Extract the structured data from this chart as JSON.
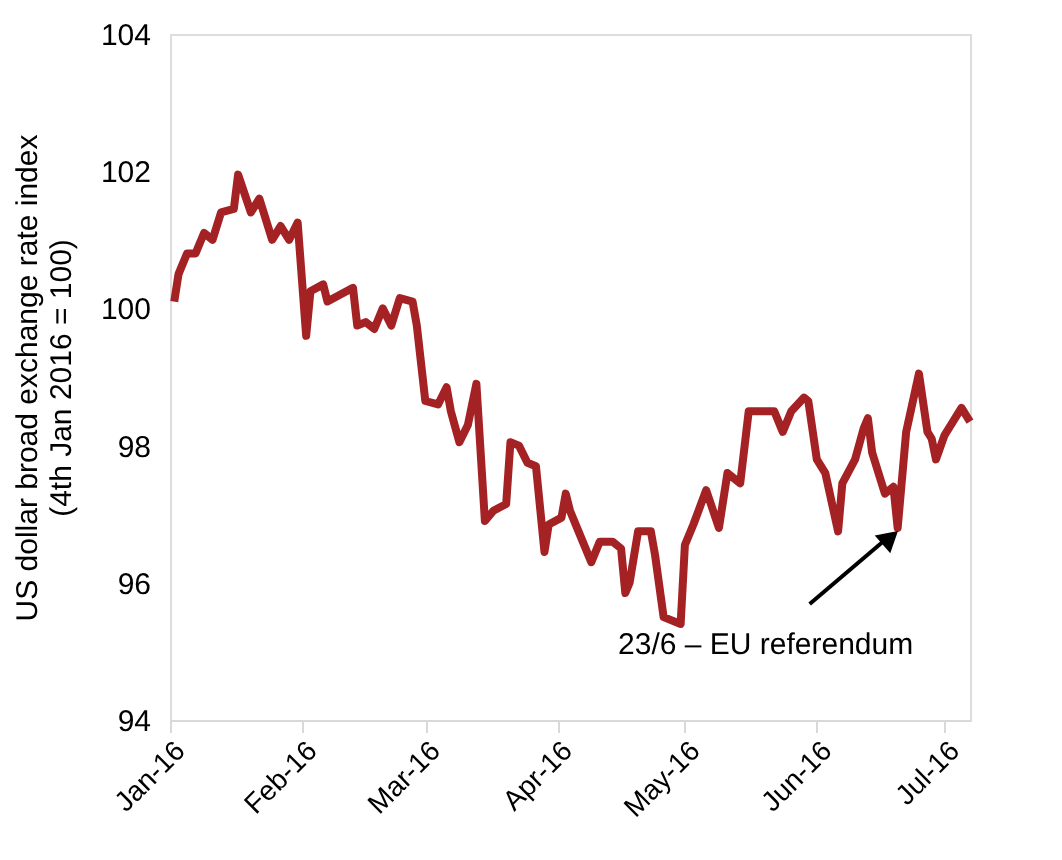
{
  "chart_data": {
    "type": "line",
    "ylabel": "US dollar broad exchange rate index\n(4th Jan 2016 = 100)",
    "x": [
      "2016-01-02",
      "2016-01-03",
      "2016-01-05",
      "2016-01-07",
      "2016-01-09",
      "2016-01-11",
      "2016-01-13",
      "2016-01-16",
      "2016-01-17",
      "2016-01-20",
      "2016-01-22",
      "2016-01-25",
      "2016-01-27",
      "2016-01-29",
      "2016-01-31",
      "2016-02-02",
      "2016-02-03",
      "2016-02-06",
      "2016-02-07",
      "2016-02-13",
      "2016-02-14",
      "2016-02-16",
      "2016-02-18",
      "2016-02-20",
      "2016-02-22",
      "2016-02-24",
      "2016-02-27",
      "2016-02-28",
      "2016-03-01",
      "2016-03-04",
      "2016-03-06",
      "2016-03-07",
      "2016-03-09",
      "2016-03-11",
      "2016-03-13",
      "2016-03-15",
      "2016-03-17",
      "2016-03-20",
      "2016-03-21",
      "2016-03-23",
      "2016-03-25",
      "2016-03-27",
      "2016-03-29",
      "2016-03-30",
      "2016-04-02",
      "2016-04-03",
      "2016-04-04",
      "2016-04-06",
      "2016-04-09",
      "2016-04-11",
      "2016-04-14",
      "2016-04-16",
      "2016-04-17",
      "2016-04-18",
      "2016-04-20",
      "2016-04-23",
      "2016-04-24",
      "2016-04-26",
      "2016-04-30",
      "2016-05-01",
      "2016-05-03",
      "2016-05-06",
      "2016-05-09",
      "2016-05-11",
      "2016-05-14",
      "2016-05-16",
      "2016-05-22",
      "2016-05-24",
      "2016-05-26",
      "2016-05-29",
      "2016-05-30",
      "2016-06-01",
      "2016-06-03",
      "2016-06-06",
      "2016-06-07",
      "2016-06-10",
      "2016-06-12",
      "2016-06-13",
      "2016-06-14",
      "2016-06-17",
      "2016-06-19",
      "2016-06-20",
      "2016-06-22",
      "2016-06-25",
      "2016-06-27",
      "2016-06-28",
      "2016-06-29",
      "2016-07-01",
      "2016-07-05",
      "2016-07-07"
    ],
    "series": [
      {
        "color": "#a52224",
        "values": [
          100.1,
          100.5,
          100.8,
          100.8,
          101.1,
          101.0,
          101.4,
          101.45,
          101.95,
          101.4,
          101.6,
          101.0,
          101.2,
          101.0,
          101.25,
          99.6,
          100.25,
          100.35,
          100.1,
          100.3,
          99.75,
          99.8,
          99.7,
          100.0,
          99.75,
          100.15,
          100.1,
          99.75,
          98.65,
          98.6,
          98.85,
          98.5,
          98.05,
          98.3,
          98.9,
          96.9,
          97.05,
          97.15,
          98.05,
          98.0,
          97.75,
          97.7,
          96.45,
          96.85,
          96.95,
          97.3,
          97.05,
          96.75,
          96.3,
          96.6,
          96.6,
          96.5,
          95.85,
          96.0,
          96.75,
          96.75,
          96.4,
          95.5,
          95.4,
          96.55,
          96.85,
          97.35,
          96.8,
          97.6,
          97.45,
          98.5,
          98.5,
          98.2,
          98.5,
          98.7,
          98.65,
          97.8,
          97.6,
          96.75,
          97.45,
          97.8,
          98.25,
          98.4,
          97.9,
          97.3,
          97.4,
          96.8,
          98.2,
          99.05,
          98.2,
          98.1,
          97.8,
          98.15,
          98.55,
          98.35
        ]
      }
    ],
    "xlim": [
      "2016-01-01",
      "2016-07-07"
    ],
    "xticks": [
      {
        "value": "2016-01-01",
        "label": "Jan-16"
      },
      {
        "value": "2016-02-01",
        "label": "Feb-16"
      },
      {
        "value": "2016-03-01",
        "label": "Mar-16"
      },
      {
        "value": "2016-04-01",
        "label": "Apr-16"
      },
      {
        "value": "2016-05-01",
        "label": "May-16"
      },
      {
        "value": "2016-06-01",
        "label": "Jun-16"
      },
      {
        "value": "2016-07-01",
        "label": "Jul-16"
      }
    ],
    "ylim": [
      94,
      104
    ],
    "yticks": [
      94,
      96,
      98,
      100,
      102,
      104
    ],
    "annotations": [
      {
        "text": "23/6 – EU referendum",
        "x": "2016-06-20",
        "y": 96.8
      }
    ],
    "grid": false,
    "marker": "none",
    "line_style": "solid"
  }
}
